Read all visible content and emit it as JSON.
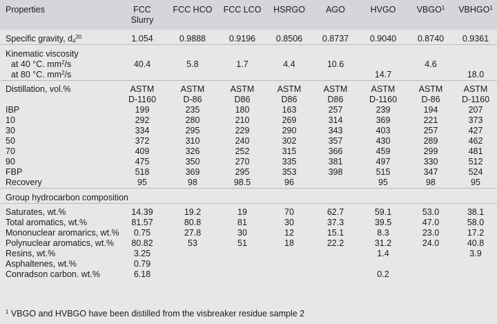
{
  "header": {
    "properties": "Properties",
    "columns": [
      {
        "line1": "FCC",
        "line2": "Slurry"
      },
      {
        "line1": "FCC HCO",
        "line2": ""
      },
      {
        "line1": "FCC LCO",
        "line2": ""
      },
      {
        "line1": "HSRGO",
        "line2": ""
      },
      {
        "line1": "AGO",
        "line2": ""
      },
      {
        "line1": "HVGO",
        "line2": ""
      },
      {
        "line1": "VBGO",
        "sup": "1",
        "line2": ""
      },
      {
        "line1": "VBHGO",
        "sup": "1",
        "line2": ""
      }
    ]
  },
  "rows": [
    {
      "label": "Specific gravity, d",
      "label_sub": "4",
      "label_sup": "20",
      "values": [
        "1.054",
        "0.9888",
        "0.9196",
        "0.8506",
        "0.8737",
        "0.9040",
        "0.8740",
        "0.9361"
      ],
      "rule": true
    },
    {
      "label": "Kinematic viscosity",
      "values": [
        "",
        "",
        "",
        "",
        "",
        "",
        "",
        ""
      ],
      "rule": true
    },
    {
      "label": " at 40 °C. mm",
      "label_sup": "2",
      "label_after": "/s",
      "indent": true,
      "values": [
        "40.4",
        "5.8",
        "1.7",
        "4.4",
        "10.6",
        "",
        "4.6",
        ""
      ]
    },
    {
      "label": " at 80 °C. mm",
      "label_sup": "2",
      "label_after": "/s",
      "indent": true,
      "values": [
        "",
        "",
        "",
        "",
        "",
        "14.7",
        "",
        "18.0"
      ]
    },
    {
      "label": "Distillation, vol.%",
      "values": [
        "ASTM",
        "ASTM",
        "ASTM",
        "ASTM",
        "ASTM",
        "ASTM",
        "ASTM",
        "ASTM"
      ],
      "rule": true
    },
    {
      "label": "",
      "values": [
        "D-1160",
        "D-86",
        "D86",
        "D86",
        "D86",
        "D-1160",
        "D-86",
        "D-1160"
      ]
    },
    {
      "label": "IBP",
      "values": [
        "199",
        "235",
        "180",
        "163",
        "257",
        "239",
        "194",
        "207"
      ]
    },
    {
      "label": "10",
      "values": [
        "292",
        "280",
        "210",
        "269",
        "314",
        "369",
        "221",
        "373"
      ]
    },
    {
      "label": "30",
      "values": [
        "334",
        "295",
        "229",
        "290",
        "343",
        "403",
        "257",
        "427"
      ]
    },
    {
      "label": "50",
      "values": [
        "372",
        "310",
        "240",
        "302",
        "357",
        "430",
        "289",
        "462"
      ]
    },
    {
      "label": "70",
      "values": [
        "409",
        "326",
        "252",
        "315",
        "366",
        "459",
        "299",
        "481"
      ]
    },
    {
      "label": "90",
      "values": [
        "475",
        "350",
        "270",
        "335",
        "381",
        "497",
        "330",
        "512"
      ]
    },
    {
      "label": "FBP",
      "values": [
        "518",
        "369",
        "295",
        "353",
        "398",
        "515",
        "347",
        "524"
      ]
    },
    {
      "label": "Recovery",
      "values": [
        "95",
        "98",
        "98.5",
        "96",
        "",
        "95",
        "98",
        "95"
      ]
    },
    {
      "label": "Group hydrocarbon composition",
      "values": [
        "",
        "",
        "",
        "",
        "",
        "",
        "",
        ""
      ],
      "rule": true
    },
    {
      "label": "Saturates, wt.%",
      "values": [
        "14.39",
        "19.2",
        "19",
        "70",
        "62.7",
        "59.1",
        "53.0",
        "38.1"
      ],
      "rule": true
    },
    {
      "label": "Total aromatics, wt.%",
      "values": [
        "81.57",
        "80.8",
        "81",
        "30",
        "37.3",
        "39.5",
        "47.0",
        "58.0"
      ]
    },
    {
      "label": "Mononuclear aromarics, wt.%",
      "values": [
        "0.75",
        "27.8",
        "30",
        "12",
        "15.1",
        "8.3",
        "23.0",
        "17.2"
      ]
    },
    {
      "label": "Polynuclear aromatics, wt.%",
      "values": [
        "80.82",
        "53",
        "51",
        "18",
        "22.2",
        "31.2",
        "24.0",
        "40.8"
      ]
    },
    {
      "label": "Resins, wt.%",
      "values": [
        "3.25",
        "",
        "",
        "",
        "",
        "1.4",
        "",
        "3.9"
      ]
    },
    {
      "label": "Asphaltenes, wt.%",
      "values": [
        "0.79",
        "",
        "",
        "",
        "",
        "",
        "",
        ""
      ]
    },
    {
      "label": "Conradson carbon. wt.%",
      "values": [
        "6.18",
        "",
        "",
        "",
        "",
        "0.2",
        "",
        ""
      ]
    }
  ],
  "footnote": {
    "mark": "1",
    "text": " VBGO and HVBGO have been distilled from the visbreaker residue sample 2"
  }
}
